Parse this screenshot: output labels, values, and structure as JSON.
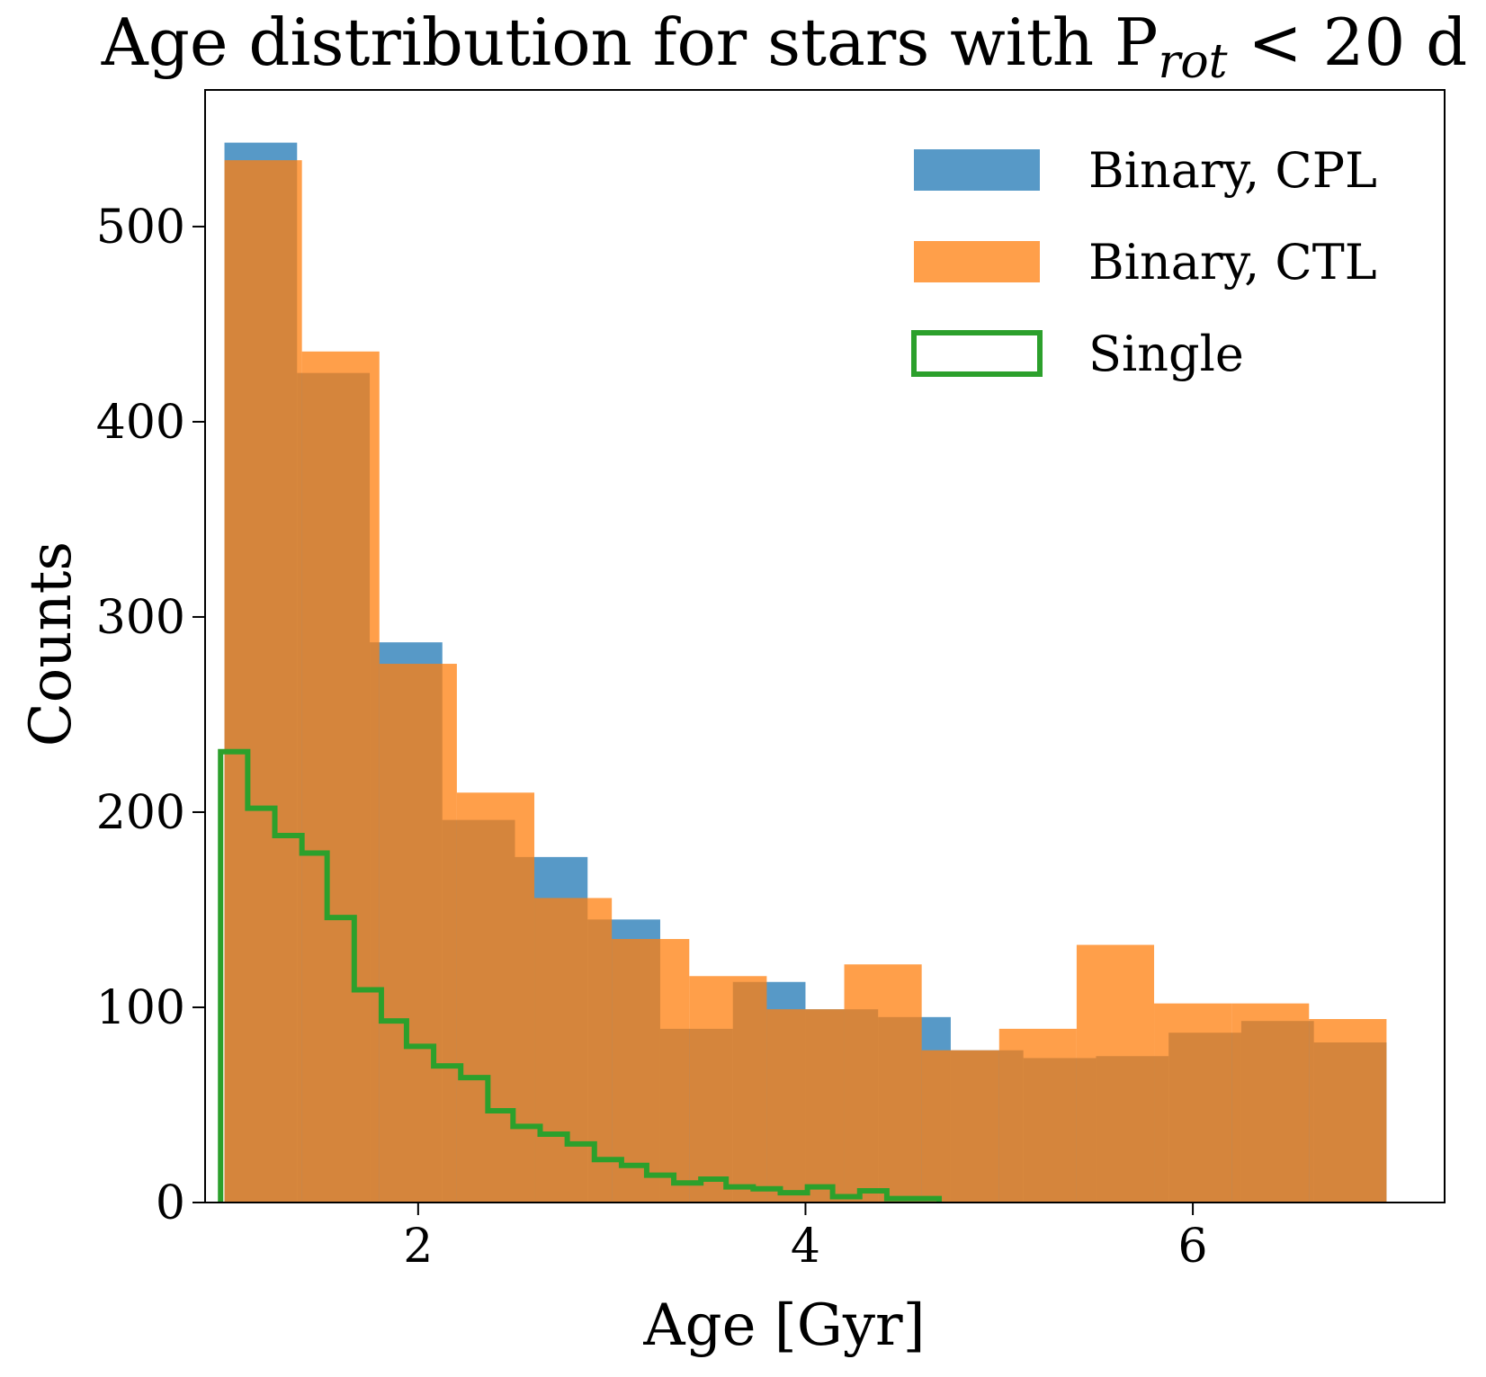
{
  "chart_data": {
    "type": "histogram",
    "title": "Age distribution for stars with P",
    "title_subscript": "rot",
    "title_suffix": " < 20 d",
    "xlabel": "Age [Gyr]",
    "ylabel": "Counts",
    "xlim": [
      0.9,
      7.3
    ],
    "ylim": [
      0,
      570
    ],
    "xticks": [
      2,
      4,
      6
    ],
    "yticks": [
      0,
      100,
      200,
      300,
      400,
      500
    ],
    "grid": false,
    "legend_position": "top-right",
    "series": [
      {
        "name": "Binary, CPL",
        "style": "filled",
        "color": "#1f77b4",
        "alpha": 0.75,
        "bin_edges": [
          1.0,
          1.375,
          1.75,
          2.125,
          2.5,
          2.875,
          3.25,
          3.625,
          4.0,
          4.375,
          4.75,
          5.125,
          5.5,
          5.875,
          6.25,
          6.625,
          7.0
        ],
        "counts": [
          543,
          425,
          287,
          196,
          177,
          145,
          89,
          113,
          99,
          95,
          78,
          74,
          75,
          87,
          93,
          82
        ]
      },
      {
        "name": "Binary, CTL",
        "style": "filled",
        "color": "#ff7f0e",
        "alpha": 0.75,
        "bin_edges": [
          1.0,
          1.4,
          1.8,
          2.2,
          2.6,
          3.0,
          3.4,
          3.8,
          4.2,
          4.6,
          5.0,
          5.4,
          5.8,
          6.2,
          6.6,
          7.0
        ],
        "counts": [
          534,
          436,
          276,
          210,
          156,
          135,
          116,
          99,
          122,
          78,
          89,
          132,
          102,
          102,
          94
        ]
      },
      {
        "name": "Single",
        "style": "step",
        "color": "#2ca02c",
        "bin_edges": [
          0.98,
          1.12,
          1.26,
          1.4,
          1.53,
          1.67,
          1.81,
          1.94,
          2.08,
          2.22,
          2.36,
          2.49,
          2.63,
          2.77,
          2.91,
          3.05,
          3.18,
          3.32,
          3.46,
          3.59,
          3.73,
          3.87,
          4.01,
          4.14,
          4.28,
          4.42,
          4.56,
          4.69
        ],
        "counts": [
          231,
          202,
          188,
          179,
          146,
          109,
          93,
          80,
          70,
          64,
          47,
          39,
          35,
          30,
          22,
          19,
          14,
          10,
          12,
          8,
          7,
          5,
          8,
          3,
          6,
          2,
          2
        ]
      }
    ]
  }
}
